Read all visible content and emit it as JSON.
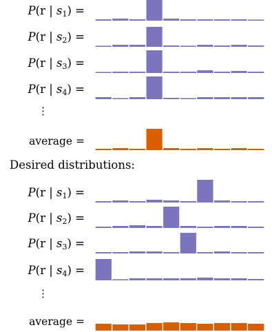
{
  "section_heading": "Desired distributions:",
  "colors": {
    "conditional": "#7b74bf",
    "average": "#d95f02"
  },
  "chart_data": [
    {
      "type": "bar",
      "group": "current",
      "rows": [
        {
          "kind": "conditional",
          "label_prefix": "P(r | ",
          "var": "s",
          "subscript": "1",
          "label_suffix": ") =",
          "values": [
            0.02,
            0.03,
            0.02,
            0.32,
            0.03,
            0.02,
            0.02,
            0.02,
            0.02,
            0.01
          ]
        },
        {
          "kind": "conditional",
          "label_prefix": "P(r | ",
          "var": "s",
          "subscript": "2",
          "label_suffix": ") =",
          "values": [
            0.01,
            0.03,
            0.03,
            0.29,
            0.02,
            0.01,
            0.03,
            0.02,
            0.03,
            0.02
          ]
        },
        {
          "kind": "conditional",
          "label_prefix": "P(r | ",
          "var": "s",
          "subscript": "3",
          "label_suffix": ") =",
          "values": [
            0.01,
            0.02,
            0.02,
            0.33,
            0.02,
            0.02,
            0.04,
            0.02,
            0.03,
            0.02
          ]
        },
        {
          "kind": "conditional",
          "label_prefix": "P(r | ",
          "var": "s",
          "subscript": "4",
          "label_suffix": ") =",
          "values": [
            0.03,
            0.01,
            0.03,
            0.33,
            0.02,
            0.01,
            0.03,
            0.03,
            0.03,
            0.03
          ]
        },
        {
          "kind": "ellipsis",
          "label": "⋮"
        },
        {
          "kind": "average",
          "label": "average =",
          "values": [
            0.02,
            0.03,
            0.02,
            0.31,
            0.03,
            0.02,
            0.03,
            0.02,
            0.03,
            0.02
          ]
        }
      ]
    },
    {
      "type": "bar",
      "group": "desired",
      "rows": [
        {
          "kind": "conditional",
          "label_prefix": "P(r | ",
          "var": "s",
          "subscript": "1",
          "label_suffix": ") =",
          "values": [
            0.02,
            0.03,
            0.02,
            0.04,
            0.03,
            0.02,
            0.33,
            0.03,
            0.02,
            0.02
          ]
        },
        {
          "kind": "conditional",
          "label_prefix": "P(r | ",
          "var": "s",
          "subscript": "2",
          "label_suffix": ") =",
          "values": [
            0.02,
            0.03,
            0.04,
            0.03,
            0.31,
            0.03,
            0.02,
            0.03,
            0.03,
            0.02
          ]
        },
        {
          "kind": "conditional",
          "label_prefix": "P(r | ",
          "var": "s",
          "subscript": "3",
          "label_suffix": ") =",
          "values": [
            0.02,
            0.02,
            0.03,
            0.03,
            0.02,
            0.3,
            0.02,
            0.03,
            0.02,
            0.02
          ]
        },
        {
          "kind": "conditional",
          "label_prefix": "P(r | ",
          "var": "s",
          "subscript": "4",
          "label_suffix": ") =",
          "values": [
            0.31,
            0.01,
            0.03,
            0.03,
            0.03,
            0.03,
            0.04,
            0.03,
            0.03,
            0.02
          ]
        },
        {
          "kind": "ellipsis",
          "label": "⋮"
        },
        {
          "kind": "average",
          "label": "average =",
          "values": [
            0.1,
            0.09,
            0.09,
            0.11,
            0.12,
            0.11,
            0.1,
            0.11,
            0.11,
            0.1
          ]
        }
      ]
    }
  ]
}
